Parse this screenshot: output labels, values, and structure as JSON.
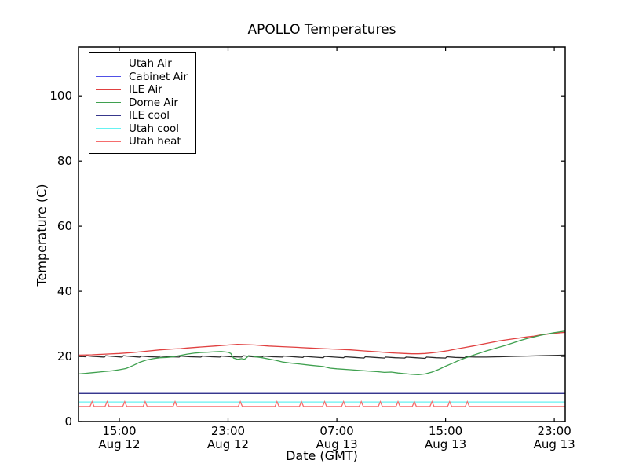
{
  "figure": {
    "title": "APOLLO Temperatures"
  },
  "chart_data": {
    "type": "line",
    "title": "APOLLO Temperatures",
    "xlabel": "Date (GMT)",
    "ylabel": "Temperature (C)",
    "x_unit": "hours since Aug 12 12:00 GMT",
    "xlim": [
      0,
      35.8
    ],
    "ylim": [
      0,
      115
    ],
    "grid": false,
    "yticks": [
      {
        "value": 0,
        "label": "0"
      },
      {
        "value": 20,
        "label": "20"
      },
      {
        "value": 40,
        "label": "40"
      },
      {
        "value": 60,
        "label": "60"
      },
      {
        "value": 80,
        "label": "80"
      },
      {
        "value": 100,
        "label": "100"
      }
    ],
    "xticks": [
      {
        "value": 3,
        "time": "15:00",
        "date": "Aug 12"
      },
      {
        "value": 11,
        "time": "23:00",
        "date": "Aug 12"
      },
      {
        "value": 19,
        "time": "07:00",
        "date": "Aug 13"
      },
      {
        "value": 27,
        "time": "15:00",
        "date": "Aug 13"
      },
      {
        "value": 35,
        "time": "23:00",
        "date": "Aug 13"
      }
    ],
    "legend_position": "upper left",
    "series": [
      {
        "name": "Utah Air",
        "color": "#2b2b2b",
        "points": [
          [
            0,
            20.0
          ],
          [
            0.5,
            19.9
          ],
          [
            0.6,
            20.2
          ],
          [
            1.0,
            20.0
          ],
          [
            1.9,
            19.8
          ],
          [
            2.0,
            20.2
          ],
          [
            2.5,
            20.0
          ],
          [
            3.2,
            19.8
          ],
          [
            3.3,
            20.2
          ],
          [
            3.8,
            20.0
          ],
          [
            4.5,
            19.8
          ],
          [
            4.6,
            20.1
          ],
          [
            5.2,
            19.9
          ],
          [
            5.9,
            19.8
          ],
          [
            6.0,
            20.1
          ],
          [
            6.6,
            19.9
          ],
          [
            7.4,
            19.8
          ],
          [
            7.5,
            20.1
          ],
          [
            8.2,
            19.9
          ],
          [
            9.0,
            19.8
          ],
          [
            9.1,
            20.1
          ],
          [
            9.8,
            19.9
          ],
          [
            10.4,
            19.8
          ],
          [
            10.5,
            20.1
          ],
          [
            11.2,
            19.9
          ],
          [
            12.0,
            19.8
          ],
          [
            12.1,
            20.2
          ],
          [
            12.8,
            19.9
          ],
          [
            13.5,
            19.8
          ],
          [
            13.6,
            20.1
          ],
          [
            14.3,
            19.9
          ],
          [
            15.0,
            19.8
          ],
          [
            15.1,
            20.1
          ],
          [
            15.8,
            19.9
          ],
          [
            16.5,
            19.7
          ],
          [
            16.6,
            20.0
          ],
          [
            17.3,
            19.8
          ],
          [
            18.0,
            19.6
          ],
          [
            18.1,
            20.0
          ],
          [
            18.8,
            19.8
          ],
          [
            19.5,
            19.6
          ],
          [
            19.6,
            19.9
          ],
          [
            20.3,
            19.7
          ],
          [
            21.0,
            19.5
          ],
          [
            21.1,
            19.9
          ],
          [
            21.8,
            19.7
          ],
          [
            22.5,
            19.5
          ],
          [
            22.6,
            19.8
          ],
          [
            23.3,
            19.6
          ],
          [
            24.0,
            19.5
          ],
          [
            24.1,
            19.8
          ],
          [
            24.8,
            19.6
          ],
          [
            25.5,
            19.4
          ],
          [
            25.6,
            19.8
          ],
          [
            26.3,
            19.6
          ],
          [
            27.0,
            19.5
          ],
          [
            27.1,
            19.9
          ],
          [
            27.7,
            19.7
          ],
          [
            28.4,
            19.6
          ],
          [
            28.5,
            19.9
          ],
          [
            29.2,
            19.8
          ],
          [
            30,
            19.8
          ],
          [
            31,
            19.9
          ],
          [
            32,
            20.0
          ],
          [
            33,
            20.1
          ],
          [
            34,
            20.2
          ],
          [
            35,
            20.3
          ],
          [
            35.8,
            20.4
          ]
        ]
      },
      {
        "name": "Cabinet Air",
        "color": "#5050e6",
        "points": [
          [
            0,
            8.6
          ],
          [
            35.8,
            8.6
          ]
        ]
      },
      {
        "name": "ILE Air",
        "color": "#e04040",
        "points": [
          [
            0,
            20.4
          ],
          [
            1,
            20.5
          ],
          [
            2,
            20.7
          ],
          [
            3,
            20.9
          ],
          [
            4,
            21.2
          ],
          [
            5,
            21.6
          ],
          [
            6,
            22.0
          ],
          [
            7,
            22.3
          ],
          [
            7.5,
            22.4
          ],
          [
            8,
            22.6
          ],
          [
            9,
            22.9
          ],
          [
            10,
            23.2
          ],
          [
            11,
            23.5
          ],
          [
            11.7,
            23.7
          ],
          [
            12.5,
            23.6
          ],
          [
            13,
            23.5
          ],
          [
            14,
            23.2
          ],
          [
            15,
            23.0
          ],
          [
            16,
            22.8
          ],
          [
            17,
            22.6
          ],
          [
            18,
            22.4
          ],
          [
            19,
            22.2
          ],
          [
            20,
            22.0
          ],
          [
            21,
            21.7
          ],
          [
            22,
            21.4
          ],
          [
            23,
            21.1
          ],
          [
            24,
            20.9
          ],
          [
            24.5,
            20.8
          ],
          [
            25,
            20.8
          ],
          [
            25.5,
            20.9
          ],
          [
            26,
            21.1
          ],
          [
            26.6,
            21.4
          ],
          [
            27.2,
            21.8
          ],
          [
            27.7,
            22.2
          ],
          [
            28.5,
            22.8
          ],
          [
            29,
            23.2
          ],
          [
            30,
            24.0
          ],
          [
            31,
            24.8
          ],
          [
            32,
            25.4
          ],
          [
            33,
            26.0
          ],
          [
            33.5,
            26.2
          ],
          [
            34,
            26.6
          ],
          [
            35,
            27.1
          ],
          [
            35.8,
            27.4
          ]
        ]
      },
      {
        "name": "Dome Air",
        "color": "#3fa04f",
        "points": [
          [
            0,
            14.6
          ],
          [
            0.5,
            14.8
          ],
          [
            1,
            15.0
          ],
          [
            1.5,
            15.2
          ],
          [
            2,
            15.4
          ],
          [
            2.5,
            15.6
          ],
          [
            3,
            15.9
          ],
          [
            3.5,
            16.3
          ],
          [
            4,
            17.2
          ],
          [
            4.5,
            18.2
          ],
          [
            5,
            18.9
          ],
          [
            5.5,
            19.3
          ],
          [
            6,
            19.6
          ],
          [
            6.5,
            19.7
          ],
          [
            7,
            19.9
          ],
          [
            7.5,
            20.3
          ],
          [
            8,
            20.7
          ],
          [
            8.5,
            21.0
          ],
          [
            9,
            21.2
          ],
          [
            9.5,
            21.3
          ],
          [
            10,
            21.4
          ],
          [
            10.5,
            21.5
          ],
          [
            11,
            21.3
          ],
          [
            11.2,
            20.9
          ],
          [
            11.4,
            19.5
          ],
          [
            11.7,
            19.1
          ],
          [
            12.0,
            19.3
          ],
          [
            12.2,
            19.1
          ],
          [
            12.4,
            19.7
          ],
          [
            12.5,
            20.2
          ],
          [
            12.8,
            20.1
          ],
          [
            13,
            19.9
          ],
          [
            13.5,
            19.6
          ],
          [
            14,
            19.2
          ],
          [
            14.5,
            18.8
          ],
          [
            15,
            18.3
          ],
          [
            15.5,
            18.0
          ],
          [
            16,
            17.8
          ],
          [
            17,
            17.3
          ],
          [
            18,
            16.9
          ],
          [
            18.5,
            16.4
          ],
          [
            19,
            16.2
          ],
          [
            20,
            15.9
          ],
          [
            21,
            15.6
          ],
          [
            22,
            15.3
          ],
          [
            22.5,
            15.1
          ],
          [
            23,
            15.2
          ],
          [
            23.5,
            14.9
          ],
          [
            24,
            14.7
          ],
          [
            24.5,
            14.5
          ],
          [
            25,
            14.4
          ],
          [
            25.5,
            14.6
          ],
          [
            26,
            15.2
          ],
          [
            26.5,
            16.0
          ],
          [
            27,
            17.0
          ],
          [
            27.5,
            17.9
          ],
          [
            28,
            18.8
          ],
          [
            28.5,
            19.6
          ],
          [
            29,
            20.3
          ],
          [
            29.5,
            21.0
          ],
          [
            30,
            21.7
          ],
          [
            30.5,
            22.3
          ],
          [
            31,
            22.9
          ],
          [
            31.5,
            23.5
          ],
          [
            32,
            24.2
          ],
          [
            32.5,
            24.9
          ],
          [
            33,
            25.5
          ],
          [
            33.5,
            26.0
          ],
          [
            34,
            26.5
          ],
          [
            34.5,
            26.9
          ],
          [
            35,
            27.3
          ],
          [
            35.5,
            27.6
          ],
          [
            35.8,
            27.8
          ]
        ]
      },
      {
        "name": "ILE cool",
        "color": "#38388c",
        "points": [
          [
            0,
            8.6
          ],
          [
            35.8,
            8.6
          ]
        ]
      },
      {
        "name": "Utah cool",
        "color": "#66f2f2",
        "points": [
          [
            0,
            6.0
          ],
          [
            35.8,
            6.0
          ]
        ]
      },
      {
        "name": "Utah heat",
        "color": "#f56d6d",
        "points": [
          [
            0,
            4.6
          ],
          [
            0.85,
            4.6
          ],
          [
            1.0,
            6.1
          ],
          [
            1.15,
            4.6
          ],
          [
            1.95,
            4.6
          ],
          [
            2.1,
            6.1
          ],
          [
            2.25,
            4.6
          ],
          [
            3.25,
            4.6
          ],
          [
            3.4,
            6.1
          ],
          [
            3.55,
            4.6
          ],
          [
            4.75,
            4.6
          ],
          [
            4.9,
            6.1
          ],
          [
            5.05,
            4.6
          ],
          [
            6.95,
            4.6
          ],
          [
            7.1,
            6.1
          ],
          [
            7.25,
            4.6
          ],
          [
            11.75,
            4.6
          ],
          [
            11.9,
            6.1
          ],
          [
            12.05,
            4.6
          ],
          [
            14.45,
            4.6
          ],
          [
            14.6,
            6.1
          ],
          [
            14.75,
            4.6
          ],
          [
            16.25,
            4.6
          ],
          [
            16.4,
            6.1
          ],
          [
            16.55,
            4.6
          ],
          [
            17.95,
            4.6
          ],
          [
            18.1,
            6.1
          ],
          [
            18.25,
            4.6
          ],
          [
            19.35,
            4.6
          ],
          [
            19.5,
            6.1
          ],
          [
            19.65,
            4.6
          ],
          [
            20.65,
            4.6
          ],
          [
            20.8,
            6.1
          ],
          [
            20.95,
            4.6
          ],
          [
            22.05,
            4.6
          ],
          [
            22.2,
            6.1
          ],
          [
            22.35,
            4.6
          ],
          [
            23.35,
            4.6
          ],
          [
            23.5,
            6.1
          ],
          [
            23.65,
            4.6
          ],
          [
            24.55,
            4.6
          ],
          [
            24.7,
            6.1
          ],
          [
            24.85,
            4.6
          ],
          [
            25.85,
            4.6
          ],
          [
            26.0,
            6.1
          ],
          [
            26.15,
            4.6
          ],
          [
            27.15,
            4.6
          ],
          [
            27.3,
            6.1
          ],
          [
            27.45,
            4.6
          ],
          [
            28.45,
            4.6
          ],
          [
            28.6,
            6.1
          ],
          [
            28.75,
            4.6
          ],
          [
            35.8,
            4.6
          ]
        ]
      }
    ]
  }
}
